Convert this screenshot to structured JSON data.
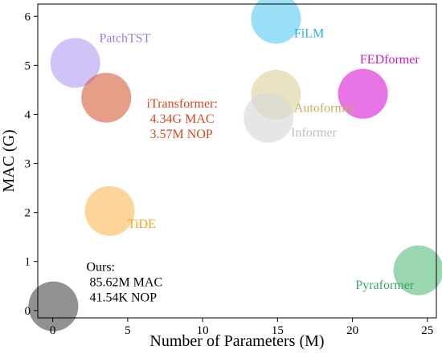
{
  "chart_data": {
    "type": "scatter",
    "title": "",
    "xlabel": "Number of Parameters (M)",
    "ylabel": "MAC (G)",
    "xlim": [
      -1.0,
      25.6
    ],
    "ylim": [
      -0.15,
      6.25
    ],
    "xticks": [
      0,
      5,
      10,
      15,
      20,
      25
    ],
    "yticks": [
      0,
      1,
      2,
      3,
      4,
      5,
      6
    ],
    "grid": false,
    "legend": "none",
    "series": [
      {
        "model": "Ours",
        "x": 0.04154,
        "y": 0.08562,
        "color": "#4d4d4d",
        "label_lines": [
          "Ours:",
          " 85.62M MAC",
          " 41.54K NOP"
        ],
        "label_color": "#000000",
        "label_dx": 2.2,
        "label_dy": 0.72
      },
      {
        "model": "PatchTST",
        "x": 1.5,
        "y": 5.05,
        "color": "#b49cf2",
        "label_lines": [
          "PatchTST"
        ],
        "label_color": "#9a7ee8",
        "label_dx": 1.6,
        "label_dy": 0.42
      },
      {
        "model": "iTransformer",
        "x": 3.57,
        "y": 4.34,
        "color": "#d5623f",
        "label_lines": [
          "iTransformer:",
          " 4.34G MAC",
          " 3.57M NOP"
        ],
        "label_color": "#d44a1e",
        "label_dx": 2.7,
        "label_dy": -0.2
      },
      {
        "model": "TiDE",
        "x": 3.8,
        "y": 2.03,
        "color": "#fbbc5c",
        "label_lines": [
          "TiDE"
        ],
        "label_color": "#f4a322",
        "label_dx": 1.2,
        "label_dy": -0.35
      },
      {
        "model": "FiLM",
        "x": 14.9,
        "y": 5.95,
        "color": "#5ccbf2",
        "label_lines": [
          "FiLM"
        ],
        "label_color": "#2aaee0",
        "label_dx": 1.2,
        "label_dy": -0.38
      },
      {
        "model": "Autoformer",
        "x": 14.9,
        "y": 4.4,
        "color": "#dcd29e",
        "label_lines": [
          "Autoformer"
        ],
        "label_color": "#c4ae6a",
        "label_dx": 1.2,
        "label_dy": -0.35
      },
      {
        "model": "Informer",
        "x": 14.4,
        "y": 3.93,
        "color": "#d6d6d6",
        "label_lines": [
          "Informer"
        ],
        "label_color": "#bdbdbd",
        "label_dx": 1.5,
        "label_dy": -0.38
      },
      {
        "model": "FEDformer",
        "x": 20.7,
        "y": 4.42,
        "color": "#d81fd3",
        "label_lines": [
          "FEDformer"
        ],
        "label_color": "#c21ebd",
        "label_dx": -0.2,
        "label_dy": 0.62
      },
      {
        "model": "Pyraformer",
        "x": 24.4,
        "y": 0.82,
        "color": "#5cbf7f",
        "label_lines": [
          "Pyraformer"
        ],
        "label_color": "#3aa864",
        "label_dx": -4.2,
        "label_dy": -0.38
      }
    ]
  }
}
